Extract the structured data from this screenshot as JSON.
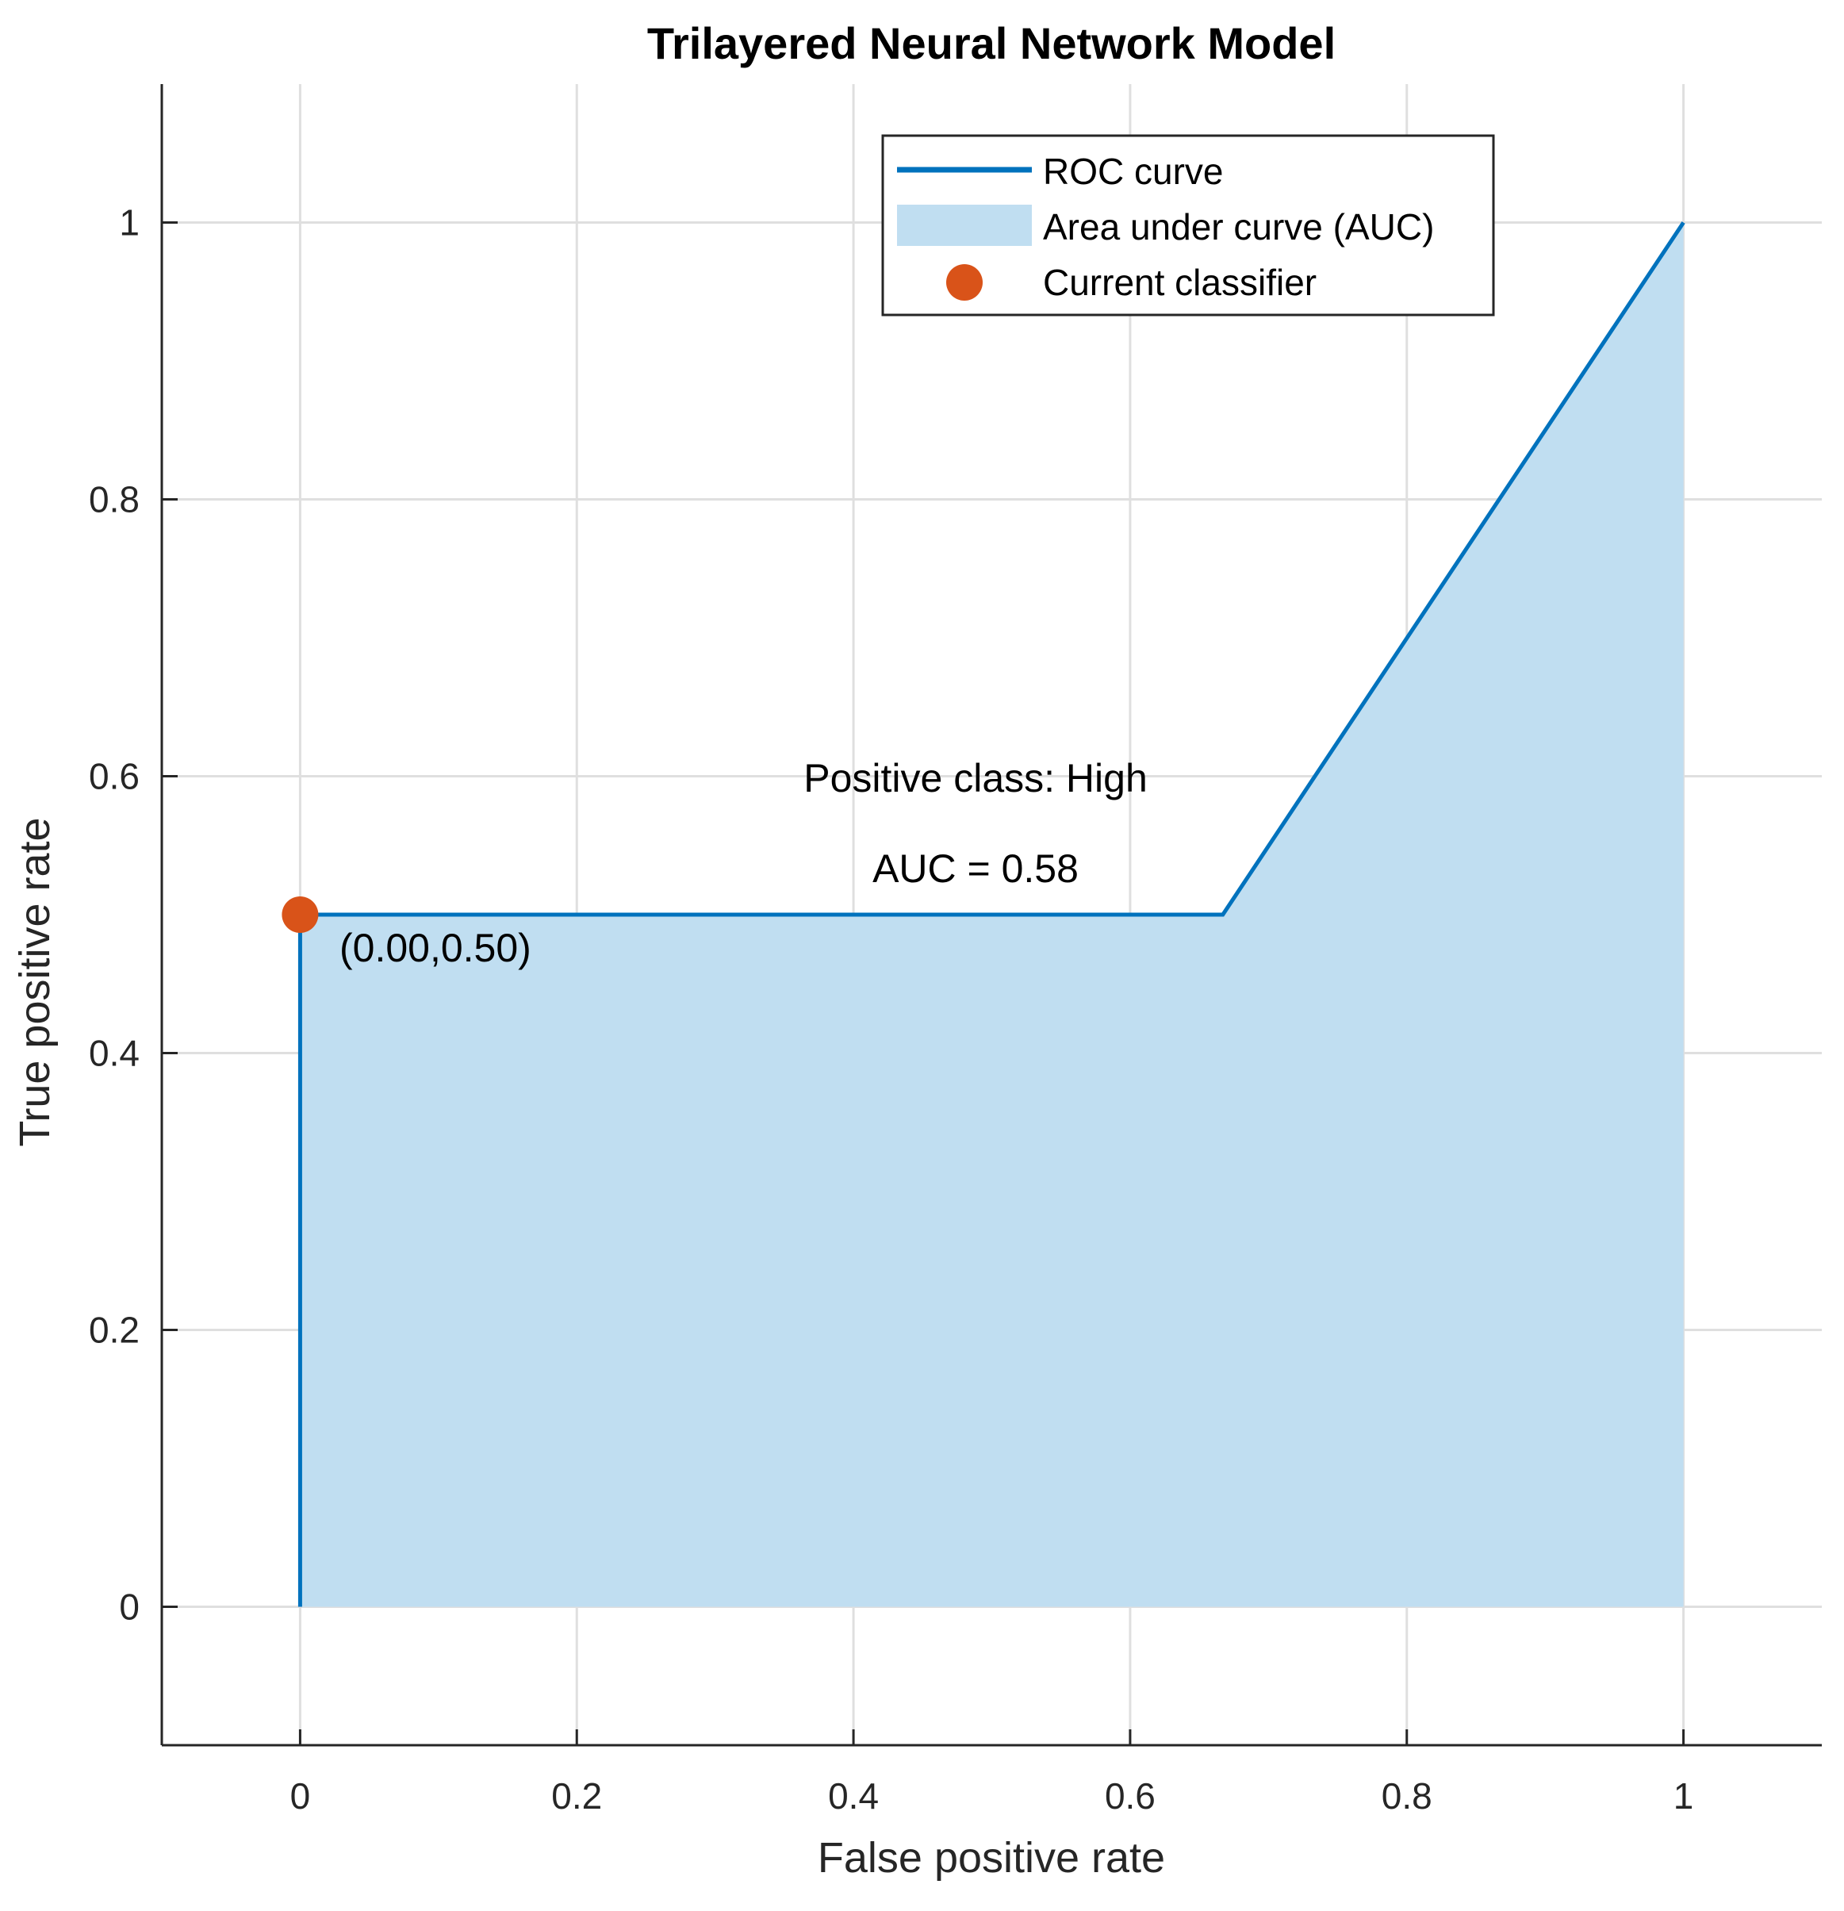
{
  "chart_data": {
    "type": "area",
    "title": "Trilayered Neural Network Model",
    "xlabel": "False positive rate",
    "ylabel": "True positive rate",
    "xlim": [
      -0.1,
      1.1
    ],
    "ylim": [
      -0.1,
      1.1
    ],
    "xticks": [
      0,
      0.2,
      0.4,
      0.6,
      0.8,
      1
    ],
    "yticks": [
      0,
      0.2,
      0.4,
      0.6,
      0.8,
      1
    ],
    "xtick_labels": [
      "0",
      "0.2",
      "0.4",
      "0.6",
      "0.8",
      "1"
    ],
    "ytick_labels": [
      "0",
      "0.2",
      "0.4",
      "0.6",
      "0.8",
      "1"
    ],
    "grid": true,
    "legend_position": "top-right",
    "series": [
      {
        "name": "ROC curve",
        "kind": "line",
        "x": [
          0,
          0,
          0.667,
          1
        ],
        "y": [
          0,
          0.5,
          0.5,
          1
        ],
        "color": "#0072BD"
      },
      {
        "name": "Area under curve (AUC)",
        "kind": "area",
        "x": [
          0,
          0,
          0.667,
          1,
          1
        ],
        "y": [
          0,
          0.5,
          0.5,
          1,
          0
        ],
        "color": "#C0DEF1"
      },
      {
        "name": "Current classifier",
        "kind": "scatter",
        "x": [
          0
        ],
        "y": [
          0.5
        ],
        "color": "#D95319"
      }
    ],
    "annotations": {
      "point_label": "(0.00,0.50)",
      "positive_class": "Positive class: High",
      "auc": "AUC = 0.58"
    }
  }
}
